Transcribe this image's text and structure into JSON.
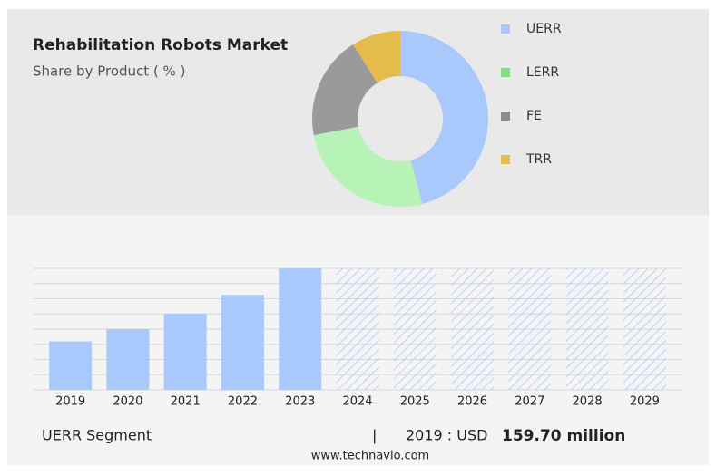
{
  "chart_data": [
    {
      "type": "donut",
      "title": "Rehabilitation Robots Market",
      "subtitle": "Share by Product ( % )",
      "categories": [
        "UERR",
        "LERR",
        "FE",
        "TRR"
      ],
      "values": [
        46,
        26,
        19,
        9
      ],
      "colors": [
        "#a9c8fb",
        "#b7f2b7",
        "#9a9a9a",
        "#e5bb4c"
      ],
      "legend_colors": [
        "#a9c8fb",
        "#7ee07e",
        "#8c8c8c",
        "#e5bb4c"
      ]
    },
    {
      "type": "bar",
      "categories": [
        "2019",
        "2020",
        "2021",
        "2022",
        "2023",
        "2024",
        "2025",
        "2026",
        "2027",
        "2028",
        "2029"
      ],
      "values": [
        159.7,
        200,
        251,
        313,
        400,
        null,
        null,
        null,
        null,
        null,
        null
      ],
      "color": "#a9c8fb",
      "ylim": [
        0,
        400
      ],
      "yticks": [
        0,
        50,
        100,
        150,
        200,
        250,
        300,
        350,
        400
      ],
      "grid": true
    }
  ],
  "footer": {
    "segment": "UERR Segment",
    "separator": "|",
    "year_label": "2019 : USD",
    "value_label": "159.70 million",
    "source": "www.technavio.com"
  }
}
